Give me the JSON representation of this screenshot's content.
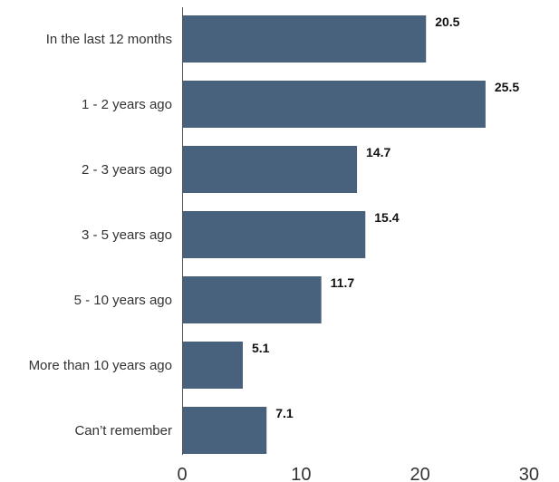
{
  "chart_data": {
    "type": "bar",
    "orientation": "horizontal",
    "categories": [
      "In the last 12 months",
      "1 - 2 years ago",
      "2 - 3 years ago",
      "3 - 5 years ago",
      "5 - 10 years ago",
      "More than 10 years ago",
      "Can’t remember"
    ],
    "values": [
      20.5,
      25.5,
      14.7,
      15.4,
      11.7,
      5.1,
      7.1
    ],
    "value_labels": [
      "20.5",
      "25.5",
      "14.7",
      "15.4",
      "11.7",
      "5.1",
      "7.1"
    ],
    "title": "",
    "xlabel": "",
    "ylabel": "",
    "xlim": [
      0,
      30
    ],
    "xticks": [
      0,
      10,
      20,
      30
    ],
    "xtick_labels": [
      "0",
      "10",
      "20",
      "30"
    ],
    "grid": false,
    "legend": "none",
    "bar_color": "#48617c",
    "axis_color": "#555555"
  }
}
